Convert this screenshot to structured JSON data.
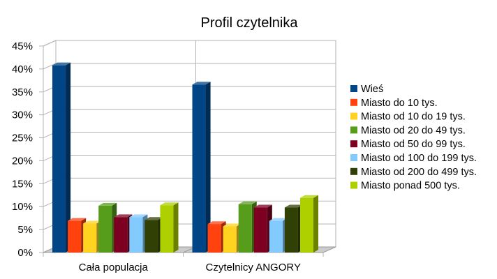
{
  "chart_data": {
    "type": "bar",
    "title": "Profil czytelnika",
    "categories": [
      "Cała populacja",
      "Czytelnicy ANGORY"
    ],
    "ylim": [
      0,
      45
    ],
    "y_ticks": [
      "0%",
      "5%",
      "10%",
      "15%",
      "20%",
      "25%",
      "30%",
      "35%",
      "40%",
      "45%"
    ],
    "grid": true,
    "legend_position": "right",
    "three_d": true,
    "series": [
      {
        "name": "Wieś",
        "color": "#004586",
        "values": [
          40.8,
          36.6
        ]
      },
      {
        "name": "Miasto do 10 tys.",
        "color": "#ff420e",
        "values": [
          6.9,
          6.2
        ]
      },
      {
        "name": "Miasto od 10 do 19 tys.",
        "color": "#ffd320",
        "values": [
          6.3,
          5.7
        ]
      },
      {
        "name": "Miasto od 20 do 49 tys.",
        "color": "#579d1c",
        "values": [
          10.2,
          10.5
        ]
      },
      {
        "name": "Miasto od 50 do 99 tys.",
        "color": "#7e0021",
        "values": [
          7.7,
          9.8
        ]
      },
      {
        "name": "Miasto od 100 do 199 tys.",
        "color": "#83caff",
        "values": [
          7.7,
          6.9
        ]
      },
      {
        "name": "Miasto od 200 do 499 tys.",
        "color": "#314004",
        "values": [
          7.1,
          9.8
        ]
      },
      {
        "name": "Miasto ponad 500 tys.",
        "color": "#aecf00",
        "values": [
          10.3,
          11.9
        ]
      }
    ]
  }
}
